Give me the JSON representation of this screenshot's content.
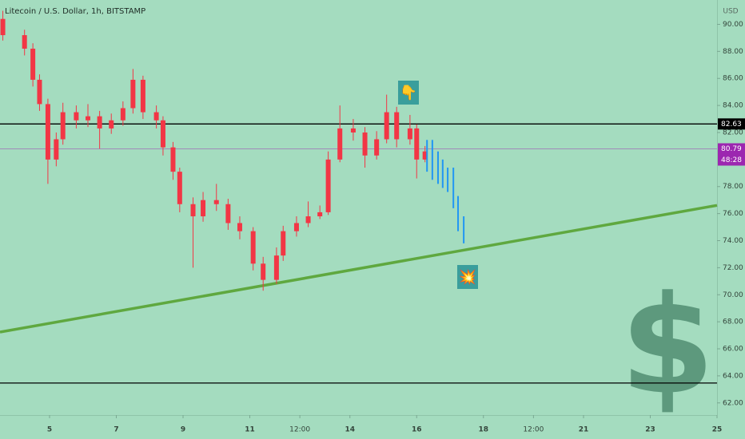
{
  "chart_data": {
    "type": "candlestick",
    "title": "Litecoin / U.S. Dollar, 1h, BITSTAMP",
    "currency": "USD",
    "xlim": [
      3.515,
      25
    ],
    "xticks": [
      5,
      7,
      9,
      11,
      {
        "value": 12.5,
        "label": "12:00"
      },
      14,
      16,
      18,
      {
        "value": 19.5,
        "label": "12:00"
      },
      21,
      23,
      25
    ],
    "ylim": [
      61.1,
      91.8
    ],
    "yticks": [
      {
        "value": 90,
        "label": "90.00"
      },
      {
        "value": 88,
        "label": "88.00"
      },
      {
        "value": 86,
        "label": "86.00"
      },
      {
        "value": 84,
        "label": "84.00"
      },
      {
        "value": 82,
        "label": "82.00"
      },
      {
        "value": 78,
        "label": "78.00"
      },
      {
        "value": 76,
        "label": "76.00"
      },
      {
        "value": 74,
        "label": "74.00"
      },
      {
        "value": 72,
        "label": "72.00"
      },
      {
        "value": 70,
        "label": "70.00"
      },
      {
        "value": 68,
        "label": "68.00"
      },
      {
        "value": 66,
        "label": "66.00"
      },
      {
        "value": 64,
        "label": "64.00"
      },
      {
        "value": 62,
        "label": "62.00"
      }
    ],
    "color": "#f23645",
    "candles": [
      {
        "x": 3.6,
        "open": 90.4,
        "high": 91.0,
        "low": 88.8,
        "close": 89.2
      },
      {
        "x": 4.25,
        "open": 89.2,
        "high": 89.6,
        "low": 87.7,
        "close": 88.2
      },
      {
        "x": 4.5,
        "open": 88.2,
        "high": 88.6,
        "low": 85.4,
        "close": 85.9
      },
      {
        "x": 4.7,
        "open": 85.9,
        "high": 86.3,
        "low": 83.6,
        "close": 84.1
      },
      {
        "x": 4.95,
        "open": 84.1,
        "high": 84.5,
        "low": 78.2,
        "close": 80.0
      },
      {
        "x": 5.2,
        "open": 80.0,
        "high": 82.0,
        "low": 79.5,
        "close": 81.5
      },
      {
        "x": 5.4,
        "open": 81.5,
        "high": 84.2,
        "low": 81.1,
        "close": 83.5
      },
      {
        "x": 5.8,
        "open": 83.5,
        "high": 84.0,
        "low": 82.3,
        "close": 82.9
      },
      {
        "x": 6.15,
        "open": 82.9,
        "high": 84.1,
        "low": 82.4,
        "close": 83.2
      },
      {
        "x": 6.5,
        "open": 83.2,
        "high": 83.6,
        "low": 80.8,
        "close": 82.3
      },
      {
        "x": 6.85,
        "open": 82.3,
        "high": 83.4,
        "low": 81.9,
        "close": 82.9
      },
      {
        "x": 7.2,
        "open": 82.9,
        "high": 84.3,
        "low": 82.5,
        "close": 83.8
      },
      {
        "x": 7.5,
        "open": 83.8,
        "high": 86.7,
        "low": 83.4,
        "close": 85.9
      },
      {
        "x": 7.8,
        "open": 85.9,
        "high": 86.2,
        "low": 83.0,
        "close": 83.5
      },
      {
        "x": 8.2,
        "open": 83.5,
        "high": 84.0,
        "low": 82.3,
        "close": 82.9
      },
      {
        "x": 8.4,
        "open": 82.9,
        "high": 83.2,
        "low": 80.3,
        "close": 80.9
      },
      {
        "x": 8.7,
        "open": 80.9,
        "high": 81.3,
        "low": 78.5,
        "close": 79.1
      },
      {
        "x": 8.9,
        "open": 79.1,
        "high": 79.4,
        "low": 76.1,
        "close": 76.7
      },
      {
        "x": 9.3,
        "open": 76.7,
        "high": 77.2,
        "low": 72.0,
        "close": 75.8
      },
      {
        "x": 9.6,
        "open": 75.8,
        "high": 77.6,
        "low": 75.4,
        "close": 77.0
      },
      {
        "x": 10.0,
        "open": 77.0,
        "high": 78.2,
        "low": 76.2,
        "close": 76.7
      },
      {
        "x": 10.35,
        "open": 76.7,
        "high": 77.1,
        "low": 74.8,
        "close": 75.3
      },
      {
        "x": 10.7,
        "open": 75.3,
        "high": 75.8,
        "low": 74.1,
        "close": 74.7
      },
      {
        "x": 11.1,
        "open": 74.7,
        "high": 75.0,
        "low": 71.8,
        "close": 72.3
      },
      {
        "x": 11.4,
        "open": 72.3,
        "high": 72.8,
        "low": 70.3,
        "close": 71.1
      },
      {
        "x": 11.8,
        "open": 71.1,
        "high": 73.5,
        "low": 70.8,
        "close": 72.9
      },
      {
        "x": 12.0,
        "open": 72.9,
        "high": 75.1,
        "low": 72.5,
        "close": 74.7
      },
      {
        "x": 12.4,
        "open": 74.7,
        "high": 75.8,
        "low": 74.3,
        "close": 75.3
      },
      {
        "x": 12.75,
        "open": 75.3,
        "high": 76.9,
        "low": 75.0,
        "close": 75.8
      },
      {
        "x": 13.1,
        "open": 75.8,
        "high": 76.6,
        "low": 75.6,
        "close": 76.1
      },
      {
        "x": 13.35,
        "open": 76.1,
        "high": 80.6,
        "low": 75.9,
        "close": 80.0
      },
      {
        "x": 13.7,
        "open": 80.0,
        "high": 84.0,
        "low": 79.8,
        "close": 82.3
      },
      {
        "x": 14.1,
        "open": 82.3,
        "high": 83.0,
        "low": 81.4,
        "close": 82.0
      },
      {
        "x": 14.45,
        "open": 82.0,
        "high": 82.4,
        "low": 79.4,
        "close": 80.3
      },
      {
        "x": 14.8,
        "open": 80.3,
        "high": 82.1,
        "low": 80.0,
        "close": 81.5
      },
      {
        "x": 15.1,
        "open": 81.5,
        "high": 84.8,
        "low": 81.2,
        "close": 83.5
      },
      {
        "x": 15.4,
        "open": 83.5,
        "high": 83.9,
        "low": 80.9,
        "close": 81.5
      },
      {
        "x": 15.8,
        "open": 81.5,
        "high": 83.3,
        "low": 81.1,
        "close": 82.3
      },
      {
        "x": 16.0,
        "open": 82.3,
        "high": 82.6,
        "low": 78.6,
        "close": 80.0
      },
      {
        "x": 16.25,
        "open": 80.0,
        "high": 81.0,
        "low": 79.8,
        "close": 80.6
      }
    ],
    "projection": {
      "color": "#2196f3",
      "bars": [
        {
          "x": 16.31,
          "high": 81.45,
          "low": 79.1
        },
        {
          "x": 16.47,
          "high": 81.45,
          "low": 78.5
        },
        {
          "x": 16.64,
          "high": 80.6,
          "low": 78.2
        },
        {
          "x": 16.78,
          "high": 80.0,
          "low": 77.9
        },
        {
          "x": 16.93,
          "high": 79.4,
          "low": 77.6
        },
        {
          "x": 17.1,
          "high": 79.4,
          "low": 76.4
        },
        {
          "x": 17.24,
          "high": 77.3,
          "low": 74.7
        },
        {
          "x": 17.41,
          "high": 75.8,
          "low": 73.8
        }
      ]
    },
    "trendline": {
      "color": "#5fa83f",
      "x": [
        3.515,
        25
      ],
      "y": [
        67.24,
        76.61
      ]
    },
    "levels": [
      {
        "value": 82.63,
        "color": "#000000",
        "tag": true
      },
      {
        "value": 63.47,
        "color": "#000000",
        "tag": false
      }
    ],
    "last_price": {
      "value": 80.79,
      "color": "#9c27b0",
      "countdown": "48:28"
    },
    "annotations": [
      "👇",
      "💥"
    ],
    "watermark": "$"
  }
}
